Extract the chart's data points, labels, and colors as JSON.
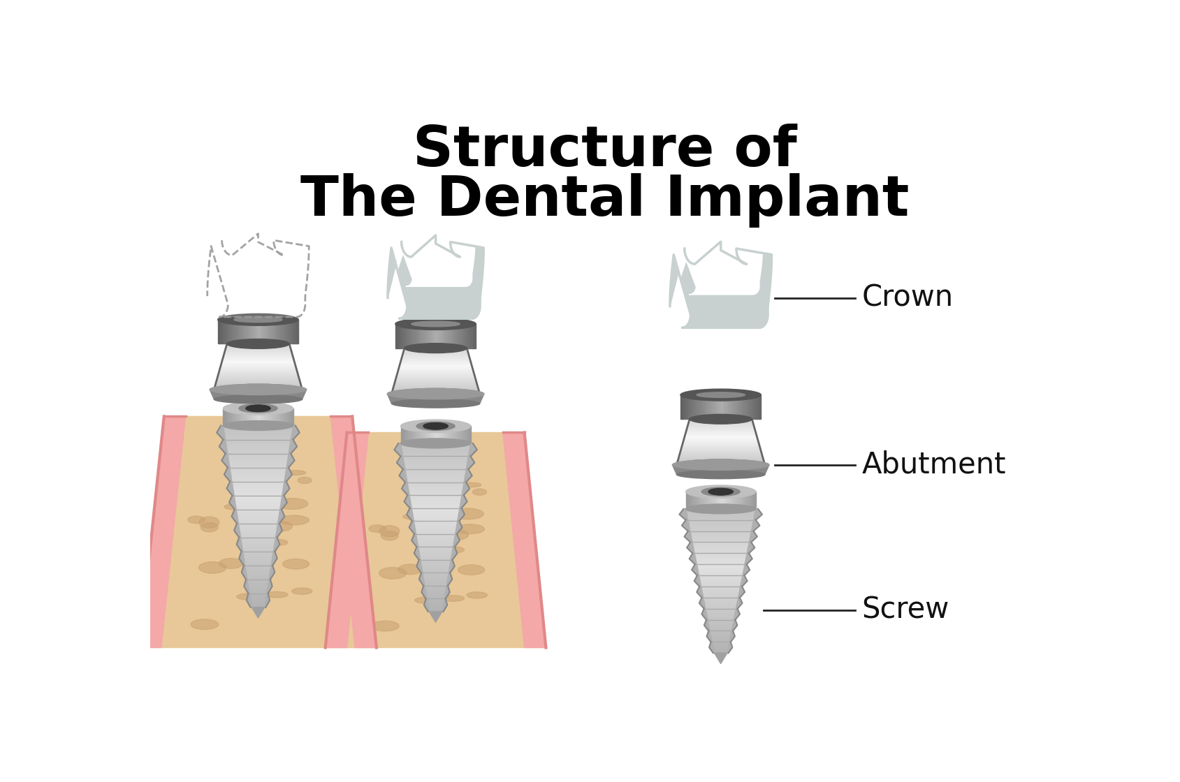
{
  "title_line1": "Structure of",
  "title_line2": "The Dental Implant",
  "title_fontsize": 58,
  "title_color": "#000000",
  "bg_color": "#ffffff",
  "labels": {
    "crown": "Crown",
    "abutment": "Abutment",
    "screw": "Screw"
  },
  "label_fontsize": 30,
  "label_color": "#111111",
  "crown_outer": "#c8d0d0",
  "crown_inner": "#f0f4f4",
  "crown_white": "#ffffff",
  "abutment_dark": "#666666",
  "abutment_mid": "#999999",
  "abutment_light": "#cccccc",
  "abutment_highlight": "#e0e0e0",
  "screw_dark": "#888888",
  "screw_mid": "#aaaaaa",
  "screw_light": "#cccccc",
  "screw_highlight": "#dddddd",
  "bone_color": "#e8c898",
  "bone_spot": "#c8a070",
  "gum_color": "#f4a8a8",
  "gum_dark": "#e08888"
}
